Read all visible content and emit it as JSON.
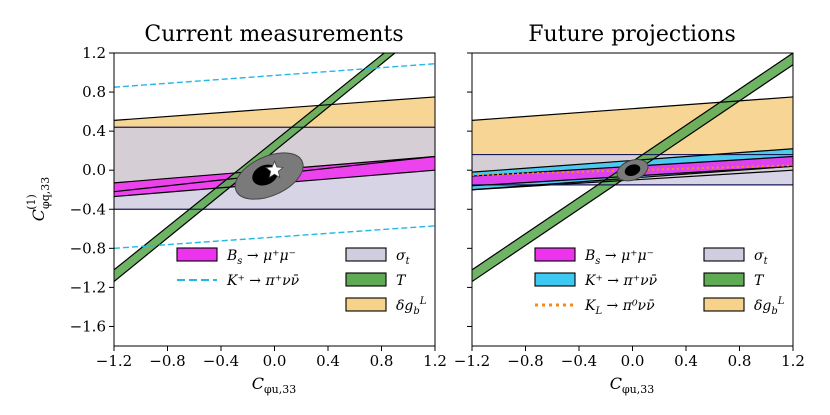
{
  "chart_data": [
    {
      "type": "region-plot",
      "title": "Current measurements",
      "xlabel": "C_{φu,33}",
      "ylabel": "C^{(1)}_{φq,33}",
      "xlim": [
        -1.2,
        1.2
      ],
      "ylim": [
        -1.8,
        1.2
      ],
      "xticks": [
        "−1.2",
        "−0.8",
        "−0.4",
        "0.0",
        "0.4",
        "0.8",
        "1.2"
      ],
      "yticks": [
        "1.2",
        "0.8",
        "0.4",
        "0.0",
        "−0.4",
        "−0.8",
        "−1.2",
        "−1.6"
      ],
      "xtick_values": [
        -1.2,
        -0.8,
        -0.4,
        0.0,
        0.4,
        0.8,
        1.2
      ],
      "ytick_values": [
        1.2,
        0.8,
        0.4,
        0.0,
        -0.4,
        -0.8,
        -1.2,
        -1.6
      ],
      "regions": [
        {
          "name": "δg_b^L",
          "color": "#f6d28a",
          "lower": [
            [
              -1.2,
              -0.22
            ],
            [
              1.2,
              0.14
            ]
          ],
          "upper": [
            [
              -1.2,
              0.51
            ],
            [
              1.2,
              0.75
            ]
          ]
        },
        {
          "name": "σ_t",
          "color": "#cfcde0",
          "lower": [
            [
              -1.2,
              -0.4
            ],
            [
              1.2,
              -0.4
            ]
          ],
          "upper": [
            [
              -1.2,
              0.44
            ],
            [
              1.2,
              0.44
            ]
          ]
        },
        {
          "name": "B_s → μ⁺μ⁻",
          "color": "#ee33ee",
          "lower": [
            [
              -1.2,
              -0.27
            ],
            [
              1.2,
              0.0
            ]
          ],
          "upper": [
            [
              -1.2,
              -0.13
            ],
            [
              1.2,
              0.14
            ]
          ]
        },
        {
          "name": "T",
          "color": "#5fab54",
          "lower": [
            [
              -1.2,
              -1.14
            ],
            [
              0.9,
              1.2
            ]
          ],
          "upper": [
            [
              -1.2,
              -1.02
            ],
            [
              0.82,
              1.2
            ]
          ]
        }
      ],
      "dashed_lines": [
        {
          "name": "K⁺ → π⁺νν̄",
          "color": "#22b8e8",
          "points": [
            [
              -1.2,
              -0.8
            ],
            [
              1.2,
              -0.57
            ]
          ]
        },
        {
          "name": "K⁺ → π⁺νν̄",
          "color": "#22b8e8",
          "points": [
            [
              -1.2,
              0.85
            ],
            [
              1.2,
              1.09
            ]
          ]
        }
      ],
      "ellipses": [
        {
          "kind": "outer",
          "cx": -0.04,
          "cy": -0.06,
          "rx": 0.27,
          "ry": 0.05,
          "angle_deg": 24
        },
        {
          "kind": "inner",
          "cx": -0.07,
          "cy": -0.05,
          "rx": 0.1,
          "ry": 0.025,
          "angle_deg": 24
        }
      ],
      "marker": {
        "symbol": "star",
        "x": 0.0,
        "y": 0.0
      },
      "legend": {
        "position": "bottom-right",
        "left_column": [
          {
            "label": "B_s → μ⁺μ⁻",
            "style": "patch",
            "color": "#ee33ee"
          },
          {
            "label": "K⁺ → π⁺νν̄",
            "style": "dashed",
            "color": "#22b8e8"
          }
        ],
        "right_column": [
          {
            "label": "σ_t",
            "style": "patch",
            "color": "#cfcde0"
          },
          {
            "label": "T",
            "style": "patch",
            "color": "#5fab54"
          },
          {
            "label": "δg_b^L",
            "style": "patch",
            "color": "#f6d28a"
          }
        ]
      }
    },
    {
      "type": "region-plot",
      "title": "Future projections",
      "xlabel": "C_{φu,33}",
      "ylabel": "",
      "xlim": [
        -1.2,
        1.2
      ],
      "ylim": [
        -1.8,
        1.2
      ],
      "xticks": [
        "−1.2",
        "−0.8",
        "−0.4",
        "0.0",
        "0.4",
        "0.8",
        "1.2"
      ],
      "xtick_values": [
        -1.2,
        -0.8,
        -0.4,
        0.0,
        0.4,
        0.8,
        1.2
      ],
      "regions": [
        {
          "name": "δg_b^L",
          "color": "#f6d28a",
          "lower": [
            [
              -1.2,
              -0.2
            ],
            [
              1.2,
              0.0
            ]
          ],
          "upper": [
            [
              -1.2,
              0.51
            ],
            [
              1.2,
              0.75
            ]
          ]
        },
        {
          "name": "σ_t",
          "color": "#cfcde0",
          "lower": [
            [
              -1.2,
              -0.15
            ],
            [
              1.2,
              -0.15
            ]
          ],
          "upper": [
            [
              -1.2,
              0.16
            ],
            [
              1.2,
              0.16
            ]
          ]
        },
        {
          "name": "K⁺ → π⁺νν̄",
          "color": "#3dc9f2",
          "lower": [
            [
              -1.2,
              -0.2
            ],
            [
              1.2,
              0.04
            ]
          ],
          "upper": [
            [
              -1.2,
              -0.02
            ],
            [
              1.2,
              0.22
            ]
          ]
        },
        {
          "name": "B_s → μ⁺μ⁻",
          "color": "#ee33ee",
          "lower": [
            [
              -1.2,
              -0.16
            ],
            [
              1.2,
              0.04
            ]
          ],
          "upper": [
            [
              -1.2,
              -0.06
            ],
            [
              1.2,
              0.14
            ]
          ]
        },
        {
          "name": "T",
          "color": "#5fab54",
          "lower": [
            [
              -1.2,
              -1.14
            ],
            [
              1.2,
              1.08
            ]
          ],
          "upper": [
            [
              -1.2,
              -1.02
            ],
            [
              1.2,
              1.2
            ]
          ]
        }
      ],
      "dotted_lines": [
        {
          "name": "K_L → π⁰νν̄",
          "color": "#f48b16",
          "points": [
            [
              -1.2,
              -0.05
            ],
            [
              1.2,
              0.05
            ]
          ]
        }
      ],
      "ellipses": [
        {
          "kind": "outer",
          "cx": 0.0,
          "cy": 0.0,
          "rx": 0.12,
          "ry": 0.025,
          "angle_deg": 20
        },
        {
          "kind": "inner",
          "cx": 0.0,
          "cy": 0.0,
          "rx": 0.06,
          "ry": 0.014,
          "angle_deg": 20
        }
      ],
      "legend": {
        "position": "bottom-right",
        "left_column": [
          {
            "label": "B_s → μ⁺μ⁻",
            "style": "patch",
            "color": "#ee33ee"
          },
          {
            "label": "K⁺ → π⁺νν̄",
            "style": "patch",
            "color": "#3dc9f2"
          },
          {
            "label": "K_L → π⁰νν̄",
            "style": "dotted",
            "color": "#f48b16"
          }
        ],
        "right_column": [
          {
            "label": "σ_t",
            "style": "patch",
            "color": "#cfcde0"
          },
          {
            "label": "T",
            "style": "patch",
            "color": "#5fab54"
          },
          {
            "label": "δg_b^L",
            "style": "patch",
            "color": "#f6d28a"
          }
        ]
      }
    }
  ]
}
